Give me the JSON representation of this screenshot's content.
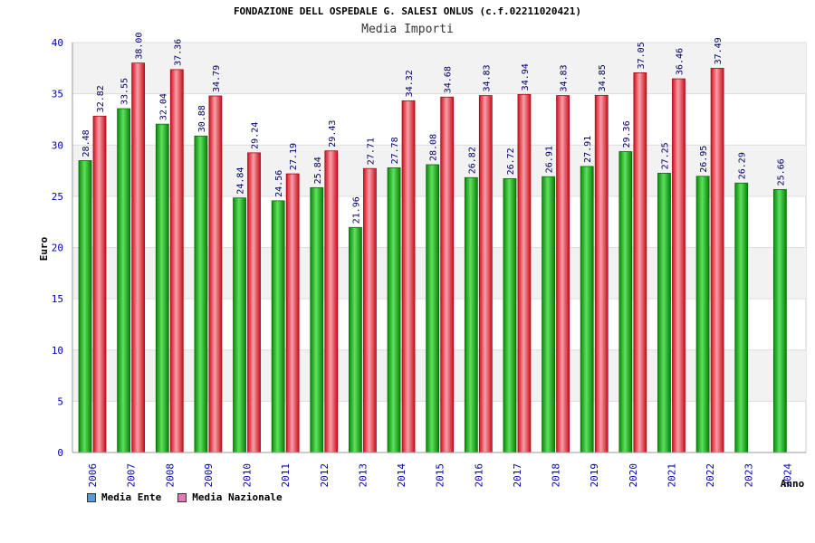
{
  "chart_data": {
    "type": "bar",
    "title": "FONDAZIONE DELL OSPEDALE G. SALESI ONLUS (c.f.02211020421)",
    "subtitle": "Media Importi",
    "xlabel": "Anno",
    "ylabel": "Euro",
    "ylim": [
      0,
      40
    ],
    "yticks": [
      0,
      5,
      10,
      15,
      20,
      25,
      30,
      35,
      40
    ],
    "grid": true,
    "legend_position": "bottom-left",
    "categories": [
      "2006",
      "2007",
      "2008",
      "2009",
      "2010",
      "2011",
      "2012",
      "2013",
      "2014",
      "2015",
      "2016",
      "2017",
      "2018",
      "2019",
      "2020",
      "2021",
      "2022",
      "2023",
      "2024"
    ],
    "series": [
      {
        "name": "Media Ente",
        "color": "#18b018",
        "legend_color": "#5b9bd5",
        "values": [
          28.48,
          33.55,
          32.04,
          30.88,
          24.84,
          24.56,
          25.84,
          21.96,
          27.78,
          28.08,
          26.82,
          26.72,
          26.91,
          27.91,
          29.36,
          27.25,
          26.95,
          26.29,
          25.66
        ]
      },
      {
        "name": "Media Nazionale",
        "color": "#e8202c",
        "legend_color": "#e07ab0",
        "values": [
          32.82,
          38.0,
          37.36,
          34.79,
          29.24,
          27.19,
          29.43,
          27.71,
          34.32,
          34.68,
          34.83,
          34.94,
          34.83,
          34.85,
          37.05,
          36.46,
          37.49,
          null,
          null
        ]
      }
    ],
    "value_labels": [
      [
        "28.48",
        "33.55",
        "32.04",
        "30.88",
        "24.84",
        "24.56",
        "25.84",
        "21.96",
        "27.78",
        "28.08",
        "26.82",
        "26.72",
        "26.91",
        "27.91",
        "29.36",
        "27.25",
        "26.95",
        "26.29",
        "25.66"
      ],
      [
        "32.82",
        "38.00",
        "37.36",
        "34.79",
        "29.24",
        "27.19",
        "29.43",
        "27.71",
        "34.32",
        "34.68",
        "34.83",
        "34.94",
        "34.83",
        "34.85",
        "37.05",
        "36.46",
        "37.49",
        "",
        ""
      ]
    ]
  }
}
